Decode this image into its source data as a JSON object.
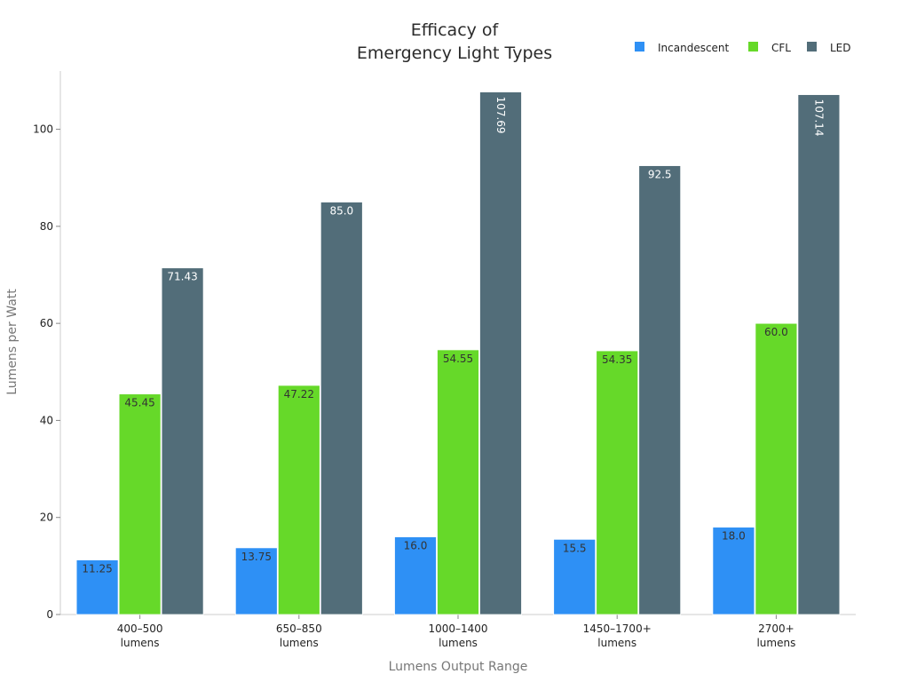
{
  "chart_data": {
    "type": "bar",
    "title": "Efficacy of\nEmergency Light Types",
    "xlabel": "Lumens Output Range",
    "ylabel": "Lumens per Watt",
    "ylim": [
      0,
      112
    ],
    "yticks": [
      0,
      20,
      40,
      60,
      80,
      100
    ],
    "categories": [
      "400–500\nlumens",
      "650–850\nlumens",
      "1000–1400\nlumens",
      "1450–1700+\nlumens",
      "2700+\nlumens"
    ],
    "series": [
      {
        "name": "Incandescent",
        "color": "#2e90f5",
        "values": [
          11.25,
          13.75,
          16.0,
          15.5,
          18.0
        ],
        "labels": [
          "11.25",
          "13.75",
          "16.0",
          "15.5",
          "18.0"
        ],
        "label_color": "#333333"
      },
      {
        "name": "CFL",
        "color": "#66d929",
        "values": [
          45.45,
          47.22,
          54.55,
          54.35,
          60.0
        ],
        "labels": [
          "45.45",
          "47.22",
          "54.55",
          "54.35",
          "60.0"
        ],
        "label_color": "#333333"
      },
      {
        "name": "LED",
        "color": "#526d79",
        "values": [
          71.43,
          85.0,
          107.69,
          92.5,
          107.14
        ],
        "labels": [
          "71.43",
          "85.0",
          "107.69",
          "92.5",
          "107.14"
        ],
        "label_color": "#ffffff"
      }
    ],
    "legend": "top-right",
    "grid": false
  }
}
